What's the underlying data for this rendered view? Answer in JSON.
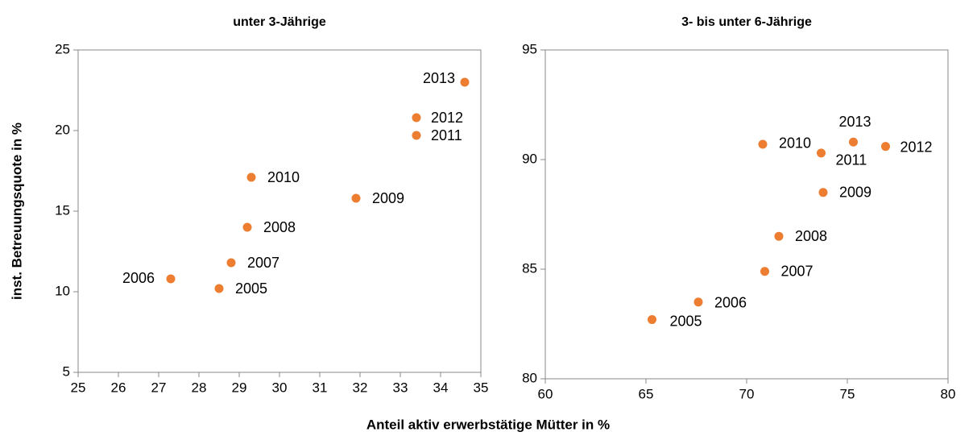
{
  "chart_data": [
    {
      "type": "scatter",
      "title": "unter 3-Jährige",
      "ylabel": "inst. Betreuungsquote in %",
      "xlabel": "Anteil aktiv erwerbstätige Mütter in %",
      "color": "#ed7d31",
      "x": [
        28.5,
        27.3,
        28.8,
        29.2,
        31.9,
        29.3,
        33.4,
        33.4,
        34.6
      ],
      "values": [
        10.2,
        10.8,
        11.8,
        14.0,
        15.8,
        17.1,
        19.7,
        20.8,
        23.0
      ],
      "labels": [
        "2005",
        "2006",
        "2007",
        "2008",
        "2009",
        "2010",
        "2011",
        "2012",
        "2013"
      ],
      "xlim": [
        25,
        35
      ],
      "xticks": [
        25,
        26,
        27,
        28,
        29,
        30,
        31,
        32,
        33,
        34,
        35
      ],
      "ylim": [
        5,
        25
      ],
      "yticks": [
        5,
        10,
        15,
        20,
        25
      ]
    },
    {
      "type": "scatter",
      "title": "3- bis unter 6-Jährige",
      "color": "#ed7d31",
      "x": [
        65.3,
        67.6,
        70.9,
        71.6,
        73.8,
        70.8,
        73.7,
        76.9,
        75.3
      ],
      "values": [
        82.7,
        83.5,
        84.9,
        86.5,
        88.5,
        90.7,
        90.3,
        90.6,
        90.8
      ],
      "labels": [
        "2005",
        "2006",
        "2007",
        "2008",
        "2009",
        "2010",
        "2011",
        "2012",
        "2013"
      ],
      "xlim": [
        60,
        80
      ],
      "xticks": [
        60,
        65,
        70,
        75,
        80
      ],
      "ylim": [
        80,
        95
      ],
      "yticks": [
        80,
        85,
        90,
        95
      ]
    }
  ]
}
